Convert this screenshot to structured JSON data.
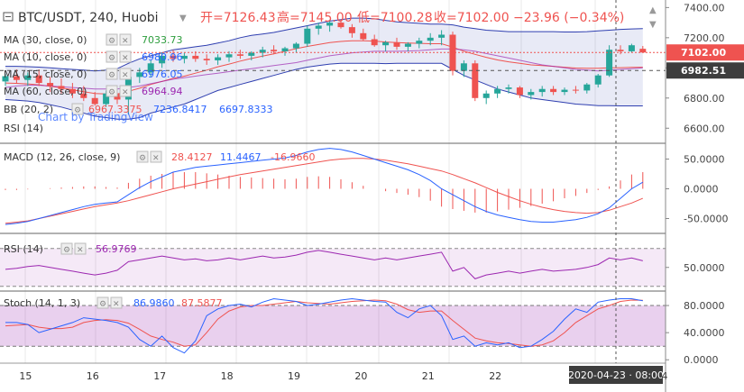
{
  "header": {
    "symbol": "BTC/USDT, 240, Huobi",
    "open_label": "开=7126.43",
    "high_label": "高=7145.00",
    "low_label": "低=7100.28",
    "close_label": "收=7102.00",
    "change_label": "−23.96 (−0.34%)",
    "watermark": "Chart by TradingView",
    "colors": {
      "up": "#26a69a",
      "down": "#ef5350",
      "ohlc": "#ef5350"
    }
  },
  "legend": {
    "ma30": {
      "label": "MA (30, close, 0)",
      "value": "7033.73",
      "color": "#2e9e3e"
    },
    "ma10": {
      "label": "MA (10, close, 0)",
      "value": "6980.96",
      "color": "#2962ff"
    },
    "ma15": {
      "label": "MA (15, close, 0)",
      "value": "6976.05",
      "color": "#2962ff"
    },
    "ma60": {
      "label": "MA (60, close, 0)",
      "value": "6964.94",
      "color": "#9c27b0"
    },
    "bb": {
      "label": "BB (20, 2)",
      "v1": "6967.3375",
      "v2": "7236.8417",
      "v3": "6697.8333"
    },
    "rsi_main": {
      "label": "RSI (14)"
    }
  },
  "chart_data": [
    {
      "type": "candlestick",
      "title": "BTC/USDT, 240, Huobi",
      "ylim": [
        6500,
        7450
      ],
      "yticks": [
        "7400.00",
        "7200.00",
        "7000.00",
        "6800.00",
        "6600.00"
      ],
      "ytick_values": [
        7400,
        7200,
        7000,
        6800,
        6600
      ],
      "price_label": "7102.00",
      "price_value": 7102,
      "dashed_level_label": "6982.51",
      "dashed_level_value": 6982.51,
      "candles": [
        [
          6910,
          6960,
          6880,
          6945
        ],
        [
          6945,
          6990,
          6900,
          6920
        ],
        [
          6920,
          6970,
          6880,
          6950
        ],
        [
          6950,
          6990,
          6880,
          6900
        ],
        [
          6900,
          6940,
          6840,
          6880
        ],
        [
          6880,
          6930,
          6830,
          6860
        ],
        [
          6860,
          6900,
          6800,
          6830
        ],
        [
          6830,
          6880,
          6780,
          6800
        ],
        [
          6800,
          6840,
          6750,
          6760
        ],
        [
          6760,
          6850,
          6740,
          6830
        ],
        [
          6830,
          6870,
          6760,
          6790
        ],
        [
          6790,
          6960,
          6690,
          6940
        ],
        [
          6940,
          7000,
          6900,
          6970
        ],
        [
          6970,
          7050,
          6940,
          7030
        ],
        [
          7030,
          7100,
          7000,
          7080
        ],
        [
          7080,
          7120,
          7040,
          7060
        ],
        [
          7060,
          7100,
          7030,
          7080
        ],
        [
          7080,
          7110,
          7040,
          7060
        ],
        [
          7060,
          7090,
          7020,
          7050
        ],
        [
          7050,
          7090,
          7020,
          7070
        ],
        [
          7070,
          7110,
          7040,
          7090
        ],
        [
          7090,
          7120,
          7060,
          7080
        ],
        [
          7080,
          7110,
          7050,
          7100
        ],
        [
          7100,
          7140,
          7070,
          7120
        ],
        [
          7120,
          7150,
          7090,
          7110
        ],
        [
          7110,
          7140,
          7080,
          7130
        ],
        [
          7130,
          7170,
          7100,
          7160
        ],
        [
          7160,
          7280,
          7140,
          7260
        ],
        [
          7260,
          7300,
          7220,
          7280
        ],
        [
          7280,
          7310,
          7240,
          7300
        ],
        [
          7300,
          7320,
          7260,
          7270
        ],
        [
          7270,
          7290,
          7200,
          7230
        ],
        [
          7230,
          7260,
          7180,
          7190
        ],
        [
          7190,
          7220,
          7140,
          7150
        ],
        [
          7150,
          7180,
          7110,
          7170
        ],
        [
          7170,
          7200,
          7120,
          7140
        ],
        [
          7140,
          7170,
          7110,
          7160
        ],
        [
          7160,
          7200,
          7130,
          7180
        ],
        [
          7180,
          7230,
          7150,
          7200
        ],
        [
          7200,
          7250,
          7150,
          7220
        ],
        [
          7220,
          7240,
          6950,
          6980
        ],
        [
          6980,
          7050,
          6940,
          7030
        ],
        [
          7030,
          7050,
          6780,
          6800
        ],
        [
          6800,
          6850,
          6760,
          6830
        ],
        [
          6830,
          6880,
          6800,
          6860
        ],
        [
          6860,
          6890,
          6830,
          6870
        ],
        [
          6870,
          6880,
          6800,
          6820
        ],
        [
          6820,
          6860,
          6790,
          6840
        ],
        [
          6840,
          6880,
          6810,
          6860
        ],
        [
          6860,
          6880,
          6820,
          6840
        ],
        [
          6840,
          6870,
          6820,
          6855
        ],
        [
          6855,
          6880,
          6830,
          6850
        ],
        [
          6850,
          6900,
          6830,
          6890
        ],
        [
          6890,
          6960,
          6870,
          6950
        ],
        [
          6950,
          7150,
          6940,
          7120
        ],
        [
          7120,
          7150,
          7090,
          7110
        ],
        [
          7110,
          7160,
          7100,
          7150
        ],
        [
          7126.43,
          7145,
          7100.28,
          7102
        ]
      ],
      "ma_slow": [
        6870,
        6880,
        6885,
        6885,
        6880,
        6875,
        6870,
        6865,
        6860,
        6860,
        6860,
        6870,
        6880,
        6895,
        6910,
        6925,
        6935,
        6945,
        6955,
        6965,
        6975,
        6985,
        6995,
        7005,
        7015,
        7025,
        7035,
        7050,
        7065,
        7080,
        7090,
        7100,
        7105,
        7110,
        7110,
        7110,
        7112,
        7115,
        7120,
        7125,
        7125,
        7120,
        7110,
        7095,
        7080,
        7065,
        7050,
        7035,
        7020,
        7010,
        7000,
        6990,
        6985,
        6980,
        6985,
        6990,
        6995,
        7000
      ],
      "bb_upper": [
        7010,
        7010,
        7008,
        7005,
        7000,
        6995,
        6990,
        6985,
        6980,
        6985,
        6995,
        7030,
        7060,
        7080,
        7100,
        7120,
        7130,
        7140,
        7150,
        7165,
        7180,
        7200,
        7215,
        7225,
        7235,
        7250,
        7265,
        7280,
        7295,
        7310,
        7320,
        7330,
        7330,
        7325,
        7315,
        7305,
        7300,
        7295,
        7290,
        7290,
        7285,
        7270,
        7260,
        7250,
        7245,
        7240,
        7240,
        7240,
        7240,
        7240,
        7238,
        7238,
        7240,
        7245,
        7250,
        7255,
        7258,
        7260
      ],
      "bb_lower": [
        6790,
        6785,
        6780,
        6770,
        6755,
        6740,
        6720,
        6700,
        6680,
        6670,
        6660,
        6660,
        6670,
        6700,
        6720,
        6740,
        6760,
        6790,
        6820,
        6850,
        6870,
        6890,
        6910,
        6930,
        6950,
        6970,
        6990,
        7005,
        7015,
        7025,
        7030,
        7030,
        7030,
        7030,
        7028,
        7030,
        7030,
        7030,
        7030,
        7030,
        6990,
        6950,
        6920,
        6890,
        6860,
        6840,
        6820,
        6800,
        6790,
        6780,
        6770,
        6760,
        6755,
        6750,
        6750,
        6748,
        6748,
        6748
      ]
    },
    {
      "type": "line",
      "title": "MACD (12, 26, close, 9)",
      "values_label": [
        "28.4127",
        "11.4467",
        "-16.9660"
      ],
      "ylim": [
        -75,
        75
      ],
      "yticks": [
        "50.0000",
        "0.0000",
        "-50.0000"
      ],
      "ytick_values": [
        50,
        0,
        -50
      ],
      "macd": [
        -60,
        -58,
        -55,
        -50,
        -45,
        -40,
        -35,
        -30,
        -26,
        -24,
        -22,
        -10,
        2,
        12,
        20,
        28,
        32,
        36,
        38,
        40,
        42,
        44,
        46,
        48,
        50,
        52,
        56,
        62,
        66,
        68,
        66,
        62,
        56,
        50,
        44,
        38,
        32,
        24,
        14,
        0,
        -10,
        -20,
        -30,
        -38,
        -44,
        -48,
        -52,
        -55,
        -56,
        -56,
        -54,
        -52,
        -48,
        -42,
        -32,
        -16,
        0,
        11
      ],
      "signal": [
        -58,
        -56,
        -54,
        -50,
        -46,
        -42,
        -38,
        -34,
        -30,
        -27,
        -24,
        -20,
        -15,
        -10,
        -5,
        0,
        4,
        8,
        12,
        16,
        20,
        24,
        27,
        30,
        33,
        36,
        39,
        42,
        45,
        48,
        50,
        51,
        51,
        50,
        48,
        45,
        42,
        38,
        34,
        30,
        24,
        17,
        10,
        2,
        -6,
        -13,
        -20,
        -26,
        -31,
        -35,
        -38,
        -40,
        -41,
        -40,
        -36,
        -30,
        -24,
        -16
      ],
      "histogram": [
        -2,
        -2,
        -1,
        0,
        1,
        2,
        3,
        4,
        4,
        3,
        2,
        10,
        17,
        22,
        25,
        28,
        28,
        28,
        26,
        24,
        22,
        20,
        19,
        18,
        17,
        16,
        17,
        20,
        21,
        20,
        16,
        11,
        5,
        0,
        -4,
        -7,
        -10,
        -14,
        -20,
        -30,
        -34,
        -37,
        -40,
        -40,
        -38,
        -35,
        -32,
        -29,
        -25,
        -21,
        -16,
        -12,
        -7,
        -2,
        4,
        14,
        24,
        28
      ]
    },
    {
      "type": "line",
      "title": "RSI (14)",
      "value_label": "56.9769",
      "ylim": [
        25,
        85
      ],
      "band": [
        30,
        70
      ],
      "yticks": [
        "50.0000"
      ],
      "ytick_values": [
        50
      ],
      "values": [
        48,
        49,
        51,
        52,
        50,
        48,
        46,
        44,
        42,
        44,
        47,
        56,
        58,
        60,
        62,
        60,
        58,
        59,
        57,
        58,
        60,
        58,
        60,
        62,
        60,
        61,
        63,
        66,
        68,
        66,
        64,
        62,
        60,
        58,
        60,
        58,
        60,
        62,
        64,
        66,
        46,
        50,
        38,
        42,
        44,
        46,
        44,
        46,
        48,
        46,
        47,
        48,
        50,
        53,
        60,
        58,
        60,
        57
      ]
    },
    {
      "type": "line",
      "title": "Stoch (14, 1, 3)",
      "values_label": [
        "86.9860",
        "87.5877"
      ],
      "ylim": [
        -5,
        100
      ],
      "band": [
        20,
        80
      ],
      "yticks": [
        "80.0000",
        "40.0000",
        "0.0000"
      ],
      "ytick_values": [
        80,
        40,
        0
      ],
      "k": [
        55,
        55,
        52,
        40,
        45,
        50,
        55,
        62,
        60,
        58,
        55,
        48,
        30,
        20,
        35,
        18,
        10,
        28,
        65,
        75,
        80,
        82,
        78,
        85,
        90,
        88,
        86,
        80,
        82,
        85,
        88,
        90,
        88,
        86,
        85,
        70,
        62,
        75,
        80,
        65,
        30,
        35,
        20,
        25,
        22,
        25,
        18,
        20,
        30,
        42,
        60,
        75,
        70,
        85,
        88,
        90,
        90,
        87
      ],
      "d": [
        50,
        51,
        52,
        48,
        46,
        46,
        48,
        55,
        58,
        59,
        58,
        54,
        45,
        35,
        30,
        26,
        20,
        22,
        40,
        60,
        72,
        78,
        80,
        80,
        82,
        84,
        86,
        84,
        83,
        82,
        84,
        86,
        87,
        88,
        87,
        82,
        74,
        70,
        72,
        72,
        58,
        45,
        32,
        28,
        25,
        24,
        22,
        20,
        22,
        28,
        40,
        55,
        65,
        75,
        80,
        86,
        88,
        87.6
      ]
    }
  ],
  "indicators": {
    "macd": {
      "label": "MACD (12, 26, close, 9)"
    },
    "rsi": {
      "label": "RSI (14)"
    },
    "stoch": {
      "label": "Stoch (14, 1, 3)"
    }
  },
  "x_axis": {
    "labels": [
      "15",
      "16",
      "17",
      "18",
      "19",
      "20",
      "21",
      "22"
    ],
    "label_index": [
      1,
      7,
      13,
      19,
      25,
      31,
      37,
      43
    ],
    "cursor_label": "2020-04-23 · 08:00",
    "edge_label": "4"
  }
}
